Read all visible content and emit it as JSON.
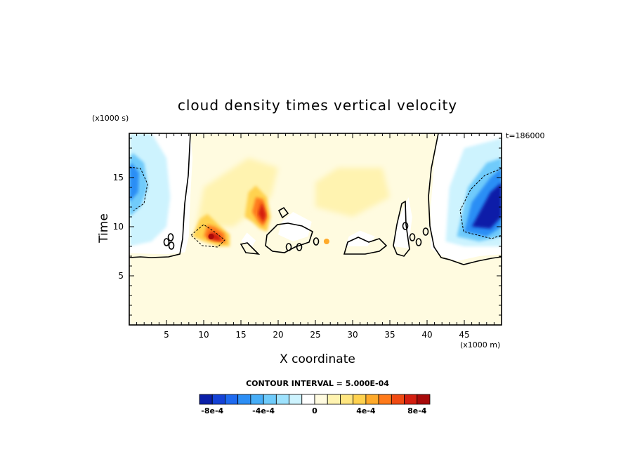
{
  "chart_data": {
    "type": "heatmap",
    "title": "cloud density times vertical velocity",
    "xlabel": "X coordinate",
    "ylabel": "Time",
    "x_multiplier": "(x1000 m)",
    "y_multiplier": "(x1000 s)",
    "time_stamp": "t=186000",
    "xlim": [
      0,
      50
    ],
    "ylim": [
      0,
      19.5
    ],
    "x_ticks": [
      5,
      10,
      15,
      20,
      25,
      30,
      35,
      40,
      45
    ],
    "y_ticks": [
      5,
      10,
      15
    ],
    "contour_interval_label": "CONTOUR INTERVAL = 5.000E-04",
    "colorbar": {
      "colors": [
        "#0a1fa8",
        "#1442d6",
        "#1e6af0",
        "#2c8ef5",
        "#47aef8",
        "#6fcbfb",
        "#9ee2fd",
        "#cdf3fe",
        "#ffffff",
        "#fffbe0",
        "#fff3b0",
        "#ffe680",
        "#ffd24f",
        "#ffaa2a",
        "#ff7a1a",
        "#f04a12",
        "#d41f10",
        "#a80a0a"
      ],
      "tick_labels": [
        "-8e-4",
        "-4e-4",
        "0",
        "4e-4",
        "8e-4"
      ],
      "tick_values": [
        -0.0008,
        -0.0004,
        0,
        0.0004,
        0.0008
      ],
      "range": [
        -0.0009,
        0.0009
      ]
    },
    "features": [
      {
        "name": "left negative region",
        "x": [
          0,
          8
        ],
        "y": [
          7.2,
          19.5
        ],
        "value_min": -0.0006
      },
      {
        "name": "right negative region",
        "x": [
          41,
          50
        ],
        "y": [
          6.5,
          19.5
        ],
        "value_min": -0.0009
      },
      {
        "name": "positive core 1",
        "x": [
          8.5,
          13.5
        ],
        "y": [
          7.8,
          11.5
        ],
        "value_max": 0.0009
      },
      {
        "name": "positive core 2",
        "x": [
          15.5,
          19
        ],
        "y": [
          9.5,
          14
        ],
        "value_max": 0.0008
      },
      {
        "name": "weak positive band",
        "x": [
          8,
          40
        ],
        "y": [
          7,
          17
        ],
        "value_max": 0.0002
      }
    ]
  }
}
